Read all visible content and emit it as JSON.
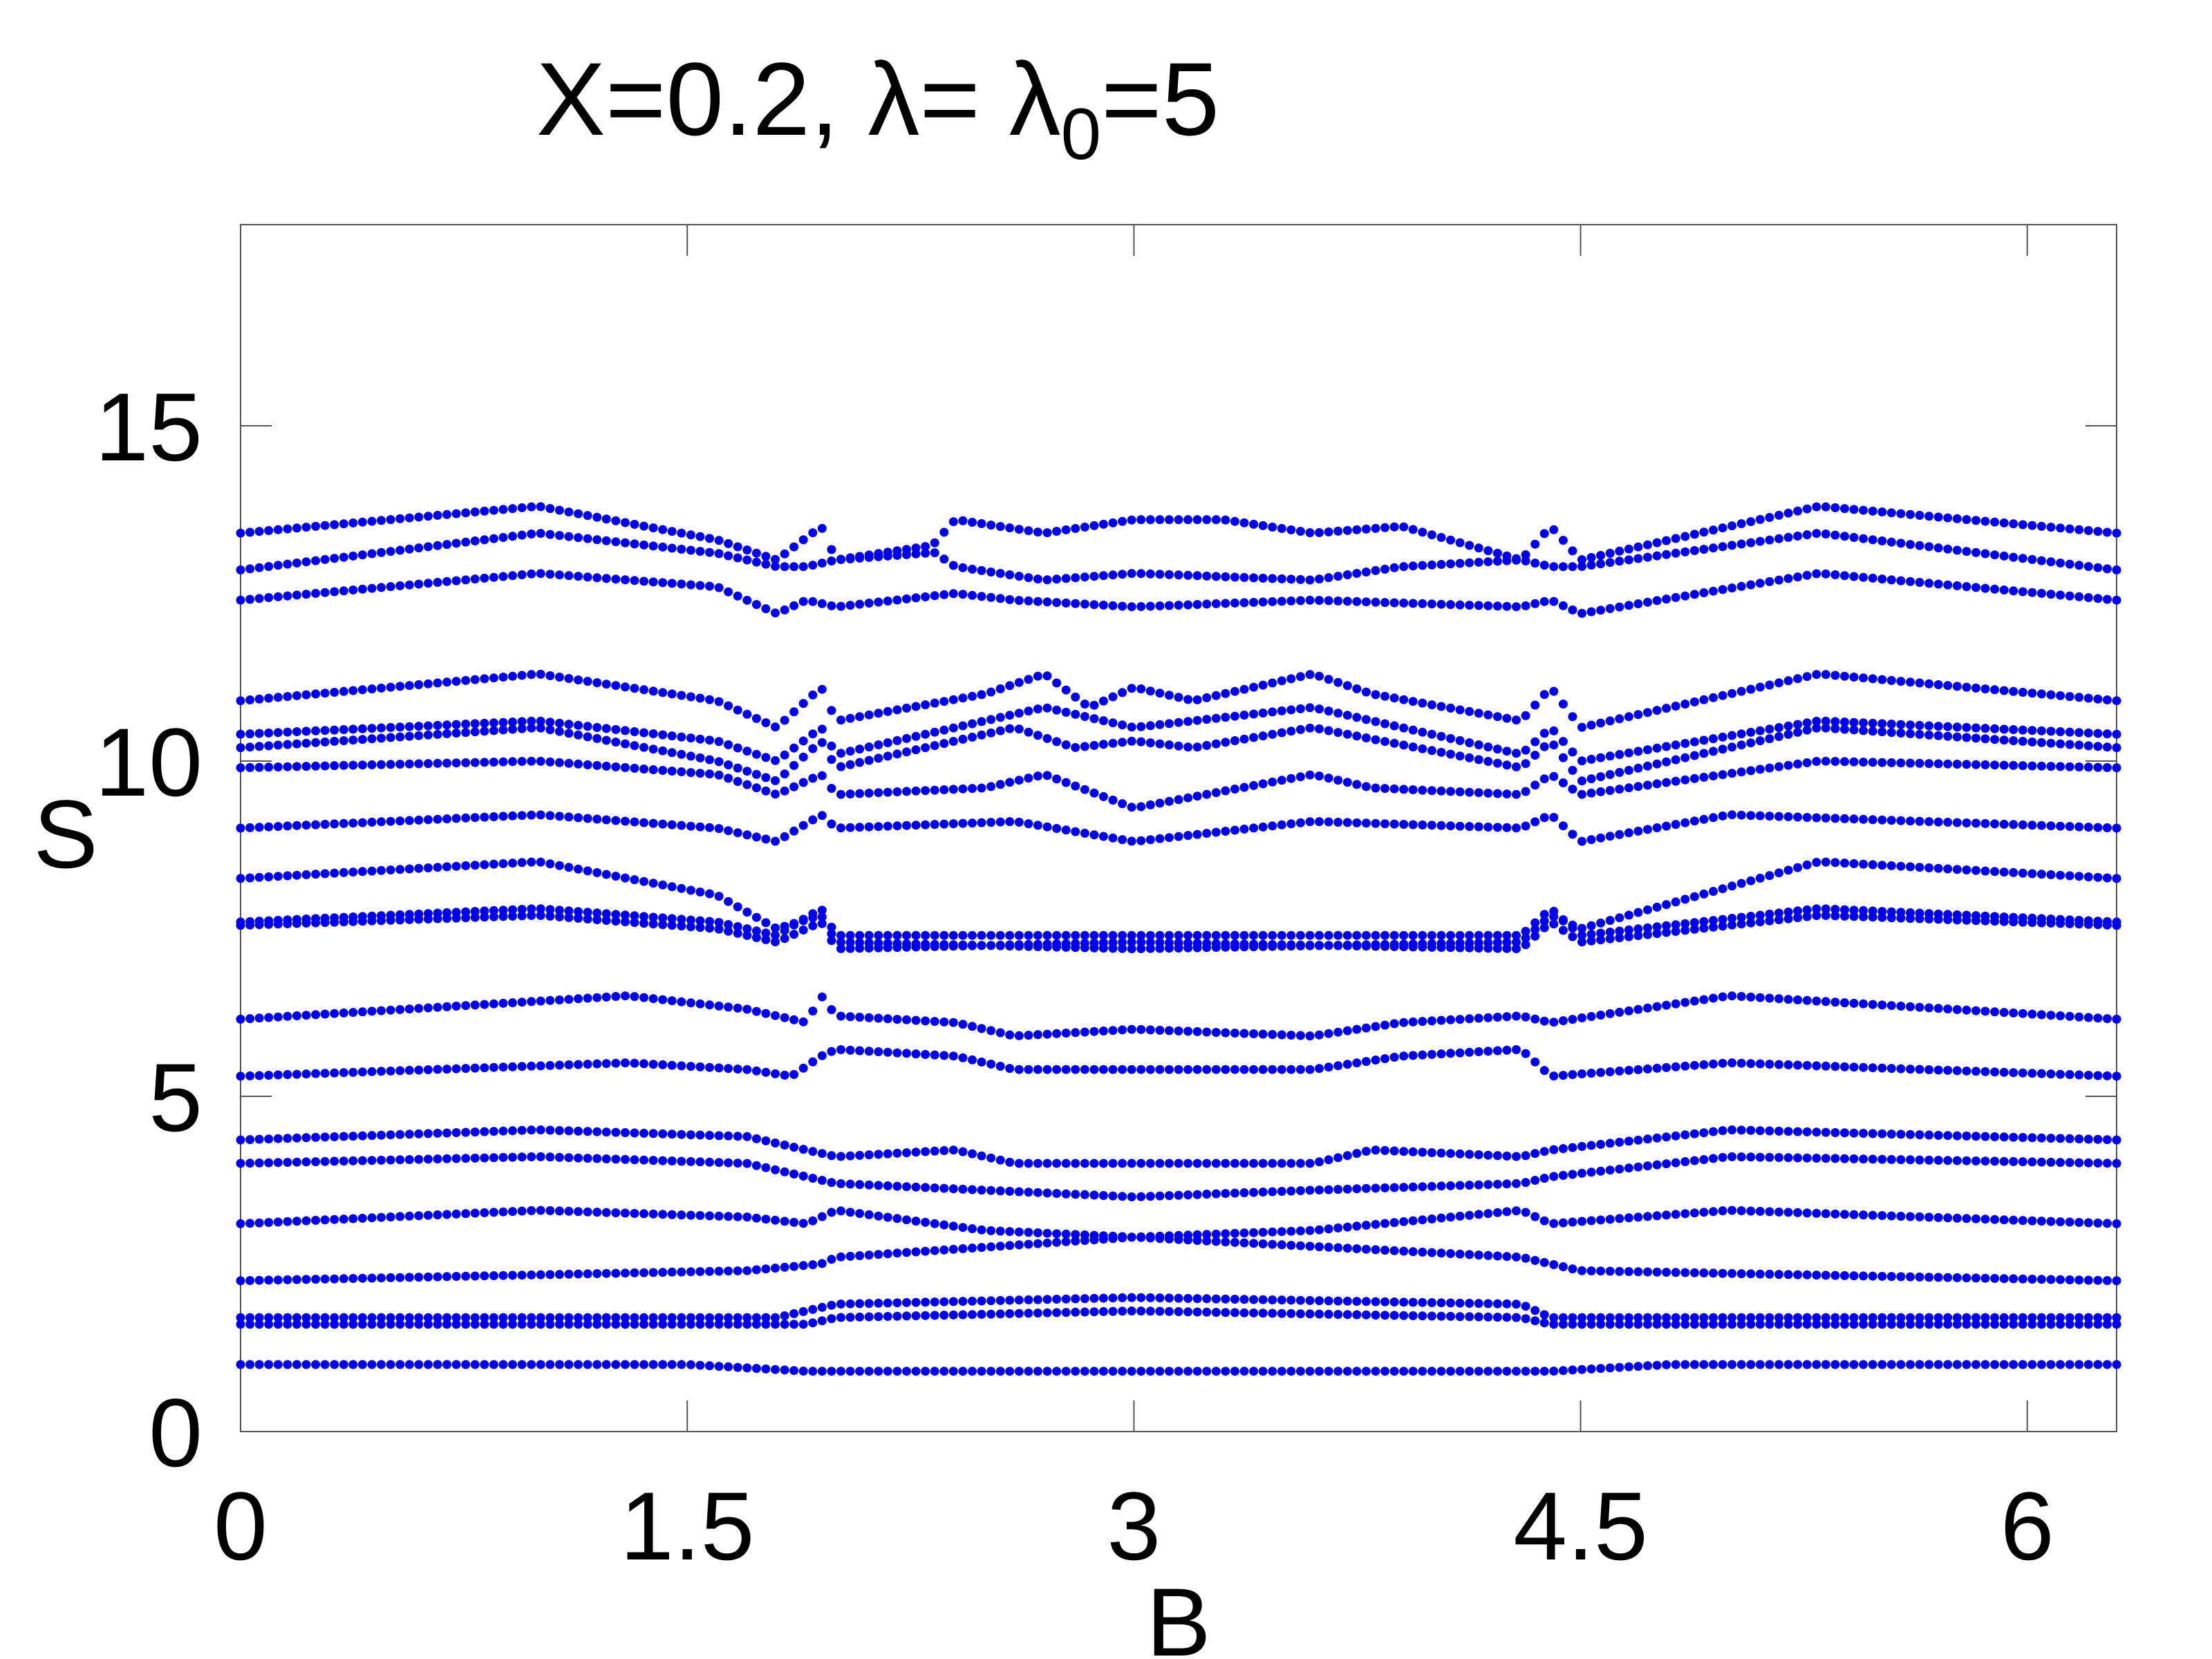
{
  "chart_data": {
    "type": "scatter",
    "title_parts": [
      "X=0.2, λ= λ",
      "0",
      "=5"
    ],
    "xlabel": "B",
    "ylabel": "S",
    "xlim": [
      0,
      6.3
    ],
    "ylim": [
      0,
      18
    ],
    "xticks": [
      {
        "value": 0,
        "label": "0"
      },
      {
        "value": 1.5,
        "label": "1.5"
      },
      {
        "value": 3,
        "label": "3"
      },
      {
        "value": 4.5,
        "label": "4.5"
      },
      {
        "value": 6,
        "label": "6"
      }
    ],
    "yticks": [
      {
        "value": 0,
        "label": "0"
      },
      {
        "value": 5,
        "label": "5"
      },
      {
        "value": 10,
        "label": "10"
      },
      {
        "value": 15,
        "label": "15"
      }
    ],
    "grid": false,
    "legend": "none",
    "marker_color": "#0000ee",
    "x_step": 0.0315,
    "series": [
      {
        "knots": [
          [
            0,
            1.0
          ],
          [
            1.5,
            1.0
          ],
          [
            1.9,
            0.9
          ],
          [
            3.0,
            0.9
          ],
          [
            4.4,
            0.9
          ],
          [
            4.8,
            1.0
          ],
          [
            6.3,
            1.0
          ]
        ]
      },
      {
        "knots": [
          [
            0,
            1.6
          ],
          [
            1.8,
            1.6
          ],
          [
            1.9,
            1.6
          ],
          [
            2.0,
            1.7
          ],
          [
            3.0,
            1.8
          ],
          [
            4.3,
            1.7
          ],
          [
            4.4,
            1.6
          ],
          [
            6.3,
            1.6
          ]
        ]
      },
      {
        "knots": [
          [
            0,
            1.7
          ],
          [
            1.8,
            1.7
          ],
          [
            1.9,
            1.8
          ],
          [
            2.0,
            1.9
          ],
          [
            3.0,
            2.0
          ],
          [
            4.3,
            1.9
          ],
          [
            4.4,
            1.7
          ],
          [
            6.3,
            1.7
          ]
        ]
      },
      {
        "knots": [
          [
            0,
            2.25
          ],
          [
            1.7,
            2.4
          ],
          [
            1.95,
            2.5
          ],
          [
            2.0,
            2.6
          ],
          [
            3.0,
            2.9
          ],
          [
            4.3,
            2.6
          ],
          [
            4.5,
            2.4
          ],
          [
            6.3,
            2.25
          ]
        ]
      },
      {
        "knots": [
          [
            0,
            3.1
          ],
          [
            1.0,
            3.3
          ],
          [
            1.7,
            3.2
          ],
          [
            1.9,
            3.1
          ],
          [
            2.0,
            3.3
          ],
          [
            2.5,
            3.0
          ],
          [
            3.0,
            2.9
          ],
          [
            3.6,
            3.0
          ],
          [
            4.3,
            3.3
          ],
          [
            4.4,
            3.1
          ],
          [
            5.0,
            3.3
          ],
          [
            6.3,
            3.1
          ]
        ]
      },
      {
        "knots": [
          [
            0,
            4.0
          ],
          [
            1.0,
            4.1
          ],
          [
            1.7,
            4.0
          ],
          [
            1.9,
            3.8
          ],
          [
            2.0,
            3.7
          ],
          [
            2.5,
            3.6
          ],
          [
            3.0,
            3.5
          ],
          [
            3.6,
            3.6
          ],
          [
            4.3,
            3.7
          ],
          [
            4.4,
            3.8
          ],
          [
            5.0,
            4.1
          ],
          [
            6.3,
            4.0
          ]
        ]
      },
      {
        "knots": [
          [
            0,
            4.35
          ],
          [
            1.0,
            4.5
          ],
          [
            1.7,
            4.4
          ],
          [
            1.9,
            4.2
          ],
          [
            2.0,
            4.1
          ],
          [
            2.4,
            4.2
          ],
          [
            2.6,
            4.0
          ],
          [
            3.0,
            4.0
          ],
          [
            3.6,
            4.0
          ],
          [
            3.8,
            4.2
          ],
          [
            4.3,
            4.1
          ],
          [
            4.4,
            4.2
          ],
          [
            5.0,
            4.5
          ],
          [
            6.3,
            4.35
          ]
        ]
      },
      {
        "knots": [
          [
            0,
            5.3
          ],
          [
            1.3,
            5.5
          ],
          [
            1.7,
            5.4
          ],
          [
            1.85,
            5.3
          ],
          [
            1.95,
            5.6
          ],
          [
            2.0,
            5.7
          ],
          [
            2.4,
            5.6
          ],
          [
            2.6,
            5.4
          ],
          [
            3.0,
            5.4
          ],
          [
            3.6,
            5.4
          ],
          [
            3.9,
            5.6
          ],
          [
            4.3,
            5.7
          ],
          [
            4.4,
            5.3
          ],
          [
            5.0,
            5.5
          ],
          [
            6.3,
            5.3
          ]
        ]
      },
      {
        "knots": [
          [
            0,
            6.15
          ],
          [
            1.3,
            6.5
          ],
          [
            1.7,
            6.3
          ],
          [
            1.9,
            6.1
          ],
          [
            1.95,
            6.5
          ],
          [
            2.0,
            6.2
          ],
          [
            2.4,
            6.1
          ],
          [
            2.6,
            5.9
          ],
          [
            3.0,
            6.0
          ],
          [
            3.6,
            5.9
          ],
          [
            3.9,
            6.1
          ],
          [
            4.3,
            6.2
          ],
          [
            4.4,
            6.1
          ],
          [
            5.0,
            6.5
          ],
          [
            6.3,
            6.15
          ]
        ]
      },
      {
        "knots": [
          [
            0,
            7.55
          ],
          [
            1.0,
            7.7
          ],
          [
            1.6,
            7.5
          ],
          [
            1.8,
            7.3
          ],
          [
            1.95,
            7.6
          ],
          [
            2.0,
            7.2
          ],
          [
            3.0,
            7.3
          ],
          [
            4.3,
            7.2
          ],
          [
            4.4,
            7.6
          ],
          [
            4.5,
            7.3
          ],
          [
            5.3,
            7.7
          ],
          [
            6.3,
            7.55
          ]
        ]
      },
      {
        "knots": [
          [
            0,
            7.6
          ],
          [
            1.0,
            7.8
          ],
          [
            1.6,
            7.6
          ],
          [
            1.8,
            7.4
          ],
          [
            1.95,
            7.8
          ],
          [
            2.0,
            7.4
          ],
          [
            2.6,
            7.4
          ],
          [
            3.0,
            7.4
          ],
          [
            3.6,
            7.4
          ],
          [
            4.3,
            7.4
          ],
          [
            4.4,
            7.8
          ],
          [
            4.5,
            7.4
          ],
          [
            5.3,
            7.8
          ],
          [
            6.3,
            7.6
          ]
        ]
      },
      {
        "knots": [
          [
            0,
            8.25
          ],
          [
            1.0,
            8.5
          ],
          [
            1.6,
            8.0
          ],
          [
            1.8,
            7.5
          ],
          [
            1.95,
            7.7
          ],
          [
            2.0,
            7.3
          ],
          [
            3.0,
            7.2
          ],
          [
            4.3,
            7.3
          ],
          [
            4.4,
            7.7
          ],
          [
            4.5,
            7.5
          ],
          [
            5.3,
            8.5
          ],
          [
            6.3,
            8.25
          ]
        ]
      },
      {
        "knots": [
          [
            0,
            9.0
          ],
          [
            1.0,
            9.2
          ],
          [
            1.6,
            9.0
          ],
          [
            1.8,
            8.8
          ],
          [
            1.95,
            9.2
          ],
          [
            2.0,
            9.0
          ],
          [
            2.6,
            9.1
          ],
          [
            3.0,
            8.8
          ],
          [
            3.6,
            9.1
          ],
          [
            4.3,
            9.0
          ],
          [
            4.4,
            9.2
          ],
          [
            4.5,
            8.8
          ],
          [
            5.0,
            9.2
          ],
          [
            6.3,
            9.0
          ]
        ]
      },
      {
        "knots": [
          [
            0,
            9.9
          ],
          [
            1.0,
            10.0
          ],
          [
            1.6,
            9.8
          ],
          [
            1.8,
            9.5
          ],
          [
            1.95,
            9.8
          ],
          [
            2.0,
            9.5
          ],
          [
            2.5,
            9.6
          ],
          [
            2.7,
            9.8
          ],
          [
            3.0,
            9.3
          ],
          [
            3.6,
            9.8
          ],
          [
            3.8,
            9.6
          ],
          [
            4.3,
            9.5
          ],
          [
            4.4,
            9.8
          ],
          [
            4.5,
            9.5
          ],
          [
            5.3,
            10.0
          ],
          [
            6.3,
            9.9
          ]
        ]
      },
      {
        "knots": [
          [
            0,
            10.2
          ],
          [
            1.0,
            10.5
          ],
          [
            1.6,
            10.0
          ],
          [
            1.8,
            9.7
          ],
          [
            1.95,
            10.3
          ],
          [
            2.0,
            9.9
          ],
          [
            2.6,
            10.5
          ],
          [
            2.8,
            10.2
          ],
          [
            3.0,
            10.3
          ],
          [
            3.2,
            10.2
          ],
          [
            3.6,
            10.5
          ],
          [
            4.3,
            9.9
          ],
          [
            4.4,
            10.3
          ],
          [
            4.5,
            9.7
          ],
          [
            5.3,
            10.5
          ],
          [
            6.3,
            10.2
          ]
        ]
      },
      {
        "knots": [
          [
            0,
            10.4
          ],
          [
            1.0,
            10.6
          ],
          [
            1.6,
            10.3
          ],
          [
            1.8,
            10.0
          ],
          [
            1.95,
            10.5
          ],
          [
            2.0,
            10.1
          ],
          [
            2.7,
            10.8
          ],
          [
            3.0,
            10.5
          ],
          [
            3.6,
            10.8
          ],
          [
            4.3,
            10.1
          ],
          [
            4.4,
            10.5
          ],
          [
            4.5,
            10.0
          ],
          [
            5.3,
            10.6
          ],
          [
            6.3,
            10.4
          ]
        ]
      },
      {
        "knots": [
          [
            0,
            10.9
          ],
          [
            1.0,
            11.3
          ],
          [
            1.6,
            10.9
          ],
          [
            1.8,
            10.5
          ],
          [
            1.95,
            11.1
          ],
          [
            2.0,
            10.6
          ],
          [
            2.5,
            11.0
          ],
          [
            2.7,
            11.3
          ],
          [
            2.85,
            10.8
          ],
          [
            3.0,
            11.1
          ],
          [
            3.2,
            10.9
          ],
          [
            3.4,
            11.1
          ],
          [
            3.6,
            11.3
          ],
          [
            3.8,
            11.0
          ],
          [
            4.3,
            10.6
          ],
          [
            4.4,
            11.1
          ],
          [
            4.5,
            10.5
          ],
          [
            5.3,
            11.3
          ],
          [
            6.3,
            10.9
          ]
        ]
      },
      {
        "knots": [
          [
            0,
            12.4
          ],
          [
            1.0,
            12.8
          ],
          [
            1.6,
            12.6
          ],
          [
            1.8,
            12.2
          ],
          [
            1.9,
            12.4
          ],
          [
            2.0,
            12.3
          ],
          [
            2.4,
            12.5
          ],
          [
            2.6,
            12.4
          ],
          [
            3.0,
            12.3
          ],
          [
            3.6,
            12.4
          ],
          [
            4.3,
            12.3
          ],
          [
            4.4,
            12.4
          ],
          [
            4.5,
            12.2
          ],
          [
            5.3,
            12.8
          ],
          [
            6.3,
            12.4
          ]
        ]
      },
      {
        "knots": [
          [
            0,
            12.85
          ],
          [
            1.0,
            13.4
          ],
          [
            1.6,
            13.1
          ],
          [
            1.8,
            12.9
          ],
          [
            1.9,
            12.9
          ],
          [
            2.0,
            13.0
          ],
          [
            2.3,
            13.2
          ],
          [
            2.4,
            12.9
          ],
          [
            2.7,
            12.7
          ],
          [
            3.0,
            12.8
          ],
          [
            3.6,
            12.7
          ],
          [
            3.9,
            12.9
          ],
          [
            4.3,
            13.0
          ],
          [
            4.4,
            12.9
          ],
          [
            4.5,
            12.9
          ],
          [
            5.3,
            13.4
          ],
          [
            6.3,
            12.85
          ]
        ]
      },
      {
        "knots": [
          [
            0,
            13.4
          ],
          [
            1.0,
            13.8
          ],
          [
            1.6,
            13.3
          ],
          [
            1.8,
            13.0
          ],
          [
            1.95,
            13.5
          ],
          [
            2.0,
            13.0
          ],
          [
            2.3,
            13.1
          ],
          [
            2.4,
            13.6
          ],
          [
            2.7,
            13.4
          ],
          [
            3.0,
            13.6
          ],
          [
            3.3,
            13.6
          ],
          [
            3.6,
            13.4
          ],
          [
            3.9,
            13.5
          ],
          [
            4.3,
            13.0
          ],
          [
            4.4,
            13.5
          ],
          [
            4.5,
            13.0
          ],
          [
            5.3,
            13.8
          ],
          [
            6.3,
            13.4
          ]
        ]
      }
    ]
  }
}
